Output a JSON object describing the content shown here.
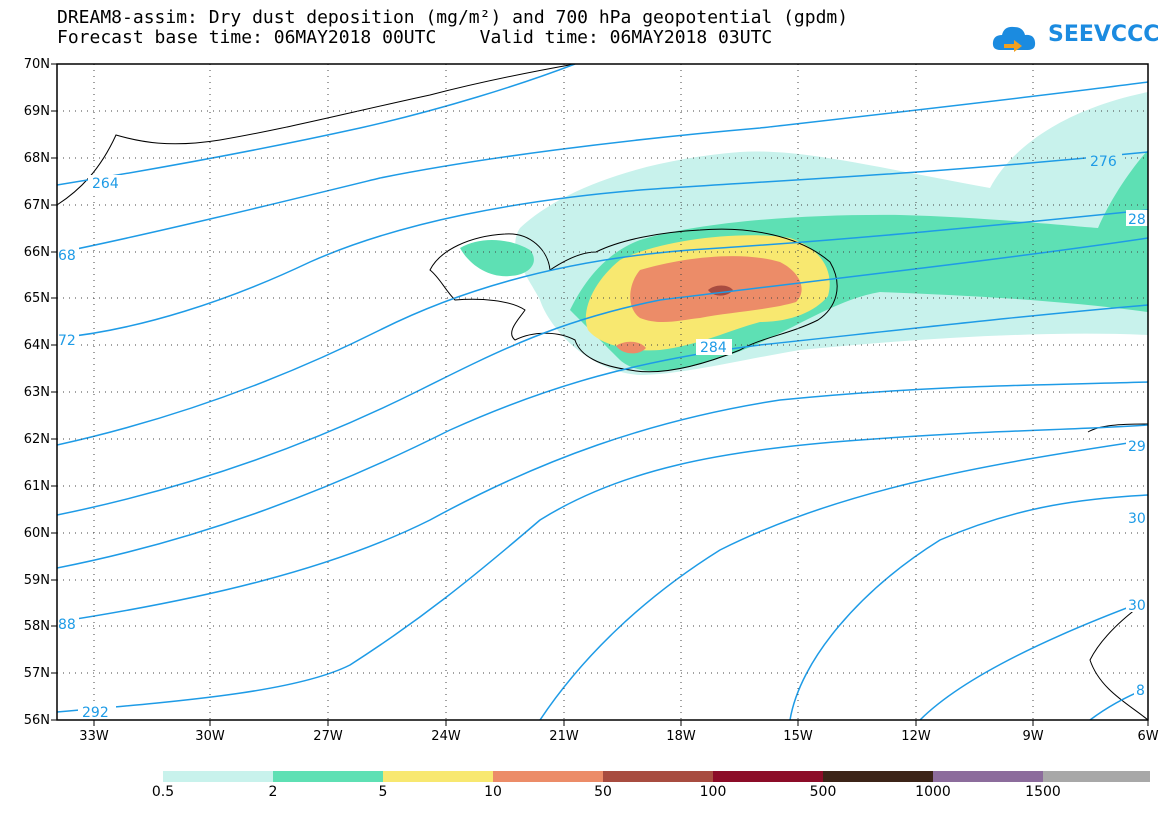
{
  "header": {
    "title_line1": "DREAM8-assim: Dry dust deposition (mg/m²) and 700 hPa geopotential (gpdm)",
    "title_line2": "Forecast base time: 06MAY2018 00UTC    Valid time: 06MAY2018 03UTC",
    "logo_text": "SEEVCCC",
    "logo_icon": "cloud-icon"
  },
  "map": {
    "region": "Iceland / North Atlantic",
    "lat_range": [
      56,
      70
    ],
    "lon_range": [
      -34.5,
      -6
    ],
    "lat_labels": [
      "70N",
      "69N",
      "68N",
      "67N",
      "66N",
      "65N",
      "64N",
      "63N",
      "62N",
      "61N",
      "60N",
      "59N",
      "58N",
      "57N",
      "56N"
    ],
    "lon_labels": [
      "33W",
      "30W",
      "27W",
      "24W",
      "21W",
      "18W",
      "15W",
      "12W",
      "9W",
      "6W"
    ],
    "contour_color": "#1e9be6",
    "contour_labels": [
      "264",
      "276",
      "28",
      "68",
      "72",
      "284",
      "29",
      "30",
      "30",
      "88",
      "292",
      "8"
    ]
  },
  "legend": {
    "colors": [
      "#c8f2ec",
      "#5ee0b4",
      "#f8e870",
      "#ec8c68",
      "#a84c40",
      "#8c0c28",
      "#3c2418",
      "#8c6c9c",
      "#a8a8a8"
    ],
    "labels": [
      "0.5",
      "2",
      "5",
      "10",
      "50",
      "100",
      "500",
      "1000",
      "1500"
    ]
  }
}
